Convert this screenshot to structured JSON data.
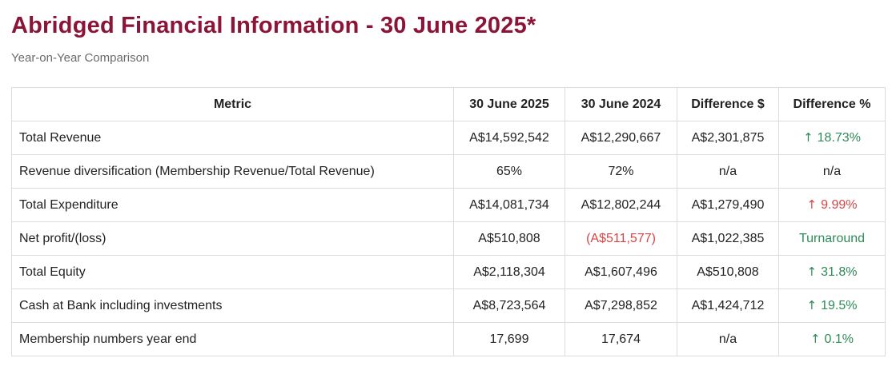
{
  "title": "Abridged Financial Information - 30 June 2025*",
  "subtitle": "Year-on-Year Comparison",
  "colors": {
    "title": "#8b1538",
    "positive": "#2e8b57",
    "negative": "#d64545"
  },
  "table": {
    "headers": [
      "Metric",
      "30 June 2025",
      "30 June 2024",
      "Difference $",
      "Difference %"
    ],
    "rows": [
      {
        "metric": "Total Revenue",
        "y2025": "A$14,592,542",
        "y2024": "A$12,290,667",
        "diff": "A$2,301,875",
        "pct": "18.73%",
        "pct_icon": "arrow-up-icon",
        "pct_tone": "good"
      },
      {
        "metric": "Revenue diversification (Membership Revenue/Total Revenue)",
        "y2025": "65%",
        "y2024": "72%",
        "diff": "n/a",
        "pct": "n/a",
        "pct_icon": "",
        "pct_tone": "plain"
      },
      {
        "metric": "Total Expenditure",
        "y2025": "A$14,081,734",
        "y2024": "A$12,802,244",
        "diff": "A$1,279,490",
        "pct": "9.99%",
        "pct_icon": "arrow-up-icon",
        "pct_tone": "bad"
      },
      {
        "metric": "Net profit/(loss)",
        "y2025": "A$510,808",
        "y2024": "(A$511,577)",
        "diff": "A$1,022,385",
        "pct": "Turnaround",
        "pct_icon": "",
        "pct_tone": "good"
      },
      {
        "metric": "Total Equity",
        "y2025": "A$2,118,304",
        "y2024": "A$1,607,496",
        "diff": "A$510,808",
        "pct": "31.8%",
        "pct_icon": "arrow-up-icon",
        "pct_tone": "good"
      },
      {
        "metric": "Cash at Bank including investments",
        "y2025": "A$8,723,564",
        "y2024": "A$7,298,852",
        "diff": "A$1,424,712",
        "pct": "19.5%",
        "pct_icon": "arrow-up-icon",
        "pct_tone": "good"
      },
      {
        "metric": "Membership numbers year end",
        "y2025": "17,699",
        "y2024": "17,674",
        "diff": "n/a",
        "pct": "0.1%",
        "pct_icon": "arrow-up-icon",
        "pct_tone": "good"
      }
    ]
  }
}
